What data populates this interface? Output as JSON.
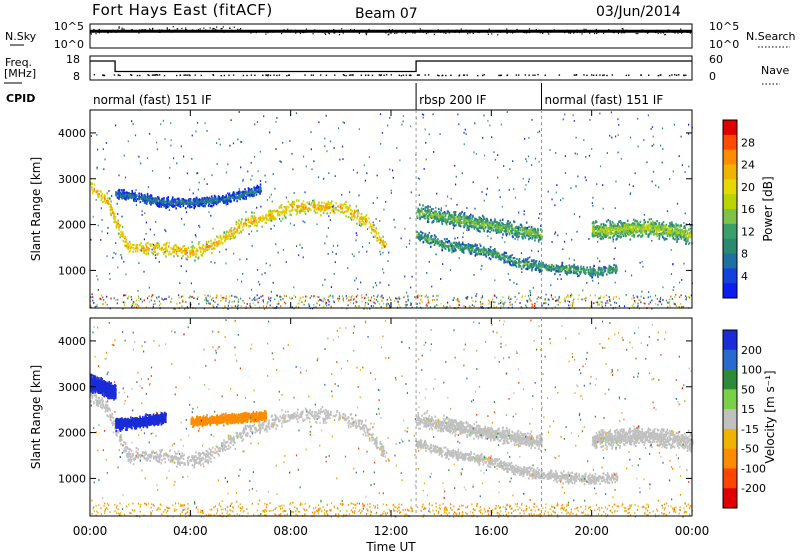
{
  "header": {
    "station": "Fort Hays East (fitACF)",
    "beam": "Beam 07",
    "date": "03/Jun/2014"
  },
  "top_panel": {
    "left_label": "N.Sky",
    "left_ticks": [
      "10^5",
      "10^0"
    ],
    "right_ticks": [
      "10^5",
      "10^0"
    ],
    "right_label": "N.Search"
  },
  "freq_panel": {
    "left_label_line1": "Freq.",
    "left_label_line2": "[MHz]",
    "left_ticks": [
      "18",
      "8"
    ],
    "right_ticks": [
      "60",
      "0"
    ],
    "right_label": "Nave"
  },
  "cpid": {
    "label": "CPID",
    "modes": [
      {
        "label": "normal (fast) 151 IF",
        "start_hour": 0,
        "end_hour": 13.0
      },
      {
        "label": "rbsp 200 IF",
        "start_hour": 13.0,
        "end_hour": 18.0
      },
      {
        "label": "normal (fast) 151 IF",
        "start_hour": 18.0,
        "end_hour": 24
      }
    ]
  },
  "axes": {
    "x_ticks": [
      "00:00",
      "04:00",
      "08:00",
      "12:00",
      "16:00",
      "20:00",
      "00:00"
    ],
    "xlabel": "Time UT",
    "y_ticks": [
      "1000",
      "2000",
      "3000",
      "4000"
    ],
    "ylabel": "Slant Range [km]"
  },
  "power_colorbar": {
    "title": "Power [dB]",
    "labels": [
      "28",
      "24",
      "20",
      "16",
      "12",
      "8",
      "4"
    ],
    "colors": [
      "#e00000",
      "#ff4a00",
      "#ff8c00",
      "#f0b400",
      "#e6d800",
      "#b9d400",
      "#7fc24a",
      "#3aa068",
      "#2a8a70",
      "#1f6fa0",
      "#1540e0",
      "#0a1ef0"
    ]
  },
  "velocity_colorbar": {
    "title": "Velocity [m s⁻¹]",
    "labels": [
      "200",
      "100",
      "50",
      "15",
      "-15",
      "-50",
      "-100",
      "-200"
    ],
    "colors": [
      "#1a2cd8",
      "#2a6ad0",
      "#2e8a3a",
      "#7bd04a",
      "#c0c0c0",
      "#f0b400",
      "#ff8c00",
      "#ff4500",
      "#e00000"
    ]
  },
  "chart_data": [
    {
      "type": "line",
      "title": "N.Sky / N.Search",
      "x": [
        0,
        24
      ],
      "series": [
        {
          "name": "N.Sky",
          "values": [
            5000,
            5000
          ]
        },
        {
          "name": "N.Search",
          "values": [
            5000,
            5000
          ]
        }
      ],
      "ylim": [
        1,
        100000
      ]
    },
    {
      "type": "line",
      "title": "Freq. / Nave",
      "x": [
        0,
        1.0,
        1.0,
        13.0,
        13.0,
        24
      ],
      "series": [
        {
          "name": "Freq. [MHz]",
          "values": [
            10.5,
            10.5,
            10.5,
            10.5,
            10.5,
            10.5
          ]
        },
        {
          "name": "Nave",
          "values": [
            60,
            60,
            25,
            25,
            60,
            60
          ]
        }
      ],
      "xlim": [
        0,
        24
      ],
      "ylim": [
        0,
        60
      ]
    },
    {
      "type": "heatmap",
      "title": "Power [dB]",
      "xlabel": "Time UT",
      "ylabel": "Slant Range [km]",
      "xlim": [
        0,
        24
      ],
      "ylim": [
        180,
        4500
      ],
      "bands": [
        {
          "x": [
            0,
            0.7,
            1.5,
            3,
            4,
            5,
            6,
            7,
            8,
            9,
            10,
            11,
            11.8
          ],
          "y": [
            2850,
            2500,
            1500,
            1500,
            1400,
            1600,
            2000,
            2200,
            2400,
            2400,
            2400,
            2100,
            1500
          ],
          "width": 220,
          "power": 22
        },
        {
          "x": [
            1,
            2,
            3,
            4,
            5,
            6,
            6.8
          ],
          "y": [
            2700,
            2600,
            2500,
            2500,
            2550,
            2650,
            2800
          ],
          "width": 140,
          "power": 8
        },
        {
          "x": [
            13,
            14,
            15,
            16,
            17,
            18
          ],
          "y": [
            2300,
            2200,
            2100,
            2000,
            1900,
            1800
          ],
          "width": 220,
          "power": 14
        },
        {
          "x": [
            13,
            14,
            15,
            16,
            17,
            18,
            19,
            20,
            21
          ],
          "y": [
            1800,
            1600,
            1500,
            1400,
            1200,
            1100,
            1050,
            1000,
            1050
          ],
          "width": 160,
          "power": 12
        },
        {
          "x": [
            20,
            21,
            22,
            23,
            24
          ],
          "y": [
            1900,
            1900,
            1950,
            1900,
            1800
          ],
          "width": 260,
          "power": 16
        }
      ]
    },
    {
      "type": "heatmap",
      "title": "Velocity [m s-1]",
      "xlabel": "Time UT",
      "ylabel": "Slant Range [km]",
      "xlim": [
        0,
        24
      ],
      "ylim": [
        180,
        4500
      ],
      "bands": [
        {
          "x": [
            0,
            0.7,
            1.5,
            3,
            4,
            5,
            6,
            7,
            8,
            9,
            10,
            11,
            11.8
          ],
          "y": [
            2850,
            2500,
            1500,
            1500,
            1400,
            1600,
            2000,
            2200,
            2400,
            2400,
            2400,
            2100,
            1500
          ],
          "width": 220,
          "velocity": 0
        },
        {
          "x": [
            0,
            0.5,
            1
          ],
          "y": [
            3100,
            3000,
            2900
          ],
          "width": 220,
          "velocity": 200
        },
        {
          "x": [
            1,
            2,
            3
          ],
          "y": [
            2200,
            2250,
            2350
          ],
          "width": 160,
          "velocity": 200
        },
        {
          "x": [
            4,
            5,
            6,
            7
          ],
          "y": [
            2250,
            2300,
            2350,
            2400
          ],
          "width": 140,
          "velocity": -50
        },
        {
          "x": [
            13,
            14,
            15,
            16,
            17,
            18
          ],
          "y": [
            2300,
            2200,
            2100,
            2000,
            1900,
            1800
          ],
          "width": 220,
          "velocity": 0
        },
        {
          "x": [
            13,
            14,
            15,
            16,
            17,
            18,
            19,
            20,
            21
          ],
          "y": [
            1800,
            1600,
            1500,
            1400,
            1200,
            1100,
            1050,
            1000,
            1050
          ],
          "width": 160,
          "velocity": 0
        },
        {
          "x": [
            20,
            21,
            22,
            23,
            24
          ],
          "y": [
            1900,
            1900,
            1950,
            1900,
            1800
          ],
          "width": 260,
          "velocity": 0
        }
      ]
    }
  ]
}
